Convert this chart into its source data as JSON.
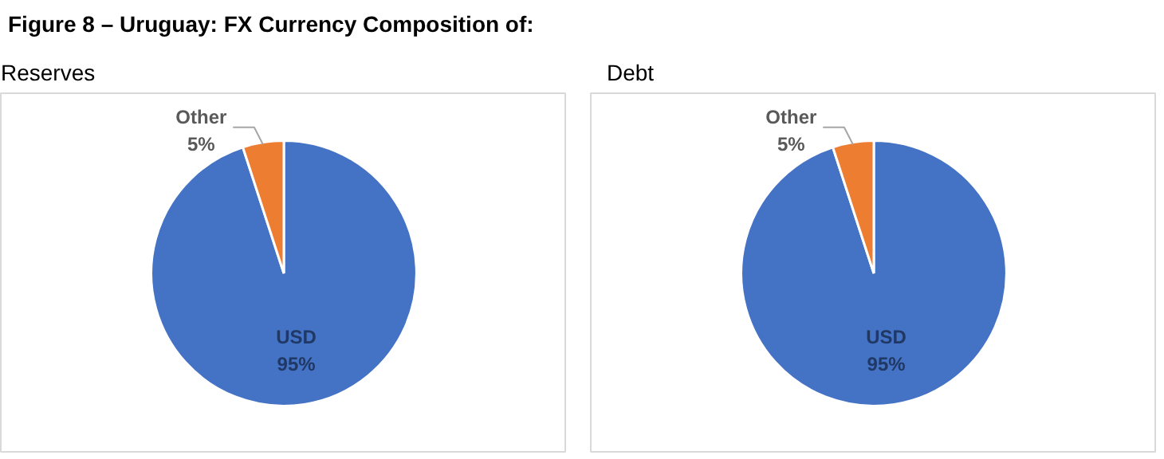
{
  "chart_data": [
    {
      "type": "pie",
      "title": "Figure 8 – Uruguay: FX Currency Composition of:",
      "subtitle": "Reserves",
      "categories": [
        "USD",
        "Other"
      ],
      "values": [
        95,
        5
      ],
      "colors": [
        "#4472c4",
        "#ed7d31"
      ],
      "value_labels": [
        "95%",
        "5%"
      ]
    },
    {
      "type": "pie",
      "subtitle": "Debt",
      "categories": [
        "USD",
        "Other"
      ],
      "values": [
        95,
        5
      ],
      "colors": [
        "#4472c4",
        "#ed7d31"
      ],
      "value_labels": [
        "95%",
        "5%"
      ]
    }
  ]
}
